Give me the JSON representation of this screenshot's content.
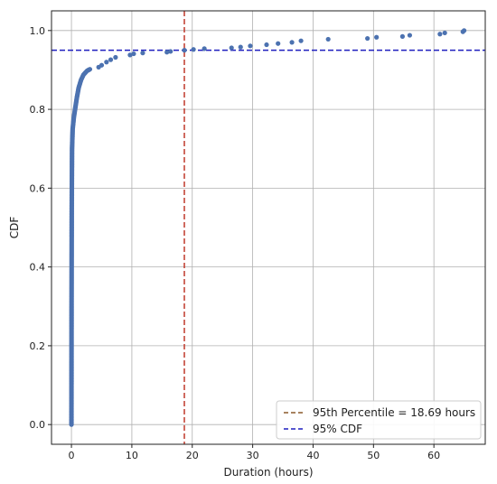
{
  "chart_data": {
    "type": "scatter",
    "xlabel": "Duration (hours)",
    "ylabel": "CDF",
    "xlim": [
      -3.3,
      68.5
    ],
    "ylim": [
      -0.05,
      1.05
    ],
    "xticks": [
      0,
      10,
      20,
      30,
      40,
      50,
      60
    ],
    "yticks": [
      0.0,
      0.2,
      0.4,
      0.6,
      0.8,
      1.0
    ],
    "grid": true,
    "legend_position": "lower-right",
    "colors": {
      "points": "#4c72b0",
      "percentile_line": "#c0392b",
      "cdf_line": "#1f1fbf",
      "legend_percentile_swatch": "#8b5a2b",
      "grid": "#b0b0b0"
    },
    "percentile_95_x": 18.69,
    "cdf_95_y": 0.95,
    "legend": [
      {
        "label": "95th Percentile = 18.69 hours",
        "style": "dashed",
        "color": "#8b5a2b"
      },
      {
        "label": "95% CDF",
        "style": "dashed",
        "color": "#1f1fbf"
      }
    ],
    "curve_knots": [
      [
        0.0,
        0.0
      ],
      [
        0.02,
        0.3
      ],
      [
        0.05,
        0.55
      ],
      [
        0.1,
        0.7
      ],
      [
        0.2,
        0.75
      ],
      [
        0.4,
        0.78
      ],
      [
        0.6,
        0.8
      ],
      [
        0.9,
        0.83
      ],
      [
        1.2,
        0.855
      ],
      [
        1.6,
        0.875
      ],
      [
        2.0,
        0.888
      ],
      [
        2.6,
        0.898
      ],
      [
        3.2,
        0.903
      ]
    ],
    "tail_points": [
      [
        4.5,
        0.907
      ],
      [
        5.0,
        0.912
      ],
      [
        5.8,
        0.92
      ],
      [
        6.5,
        0.926
      ],
      [
        7.3,
        0.932
      ],
      [
        9.7,
        0.938
      ],
      [
        10.3,
        0.941
      ],
      [
        11.8,
        0.943
      ],
      [
        15.8,
        0.945
      ],
      [
        16.4,
        0.947
      ],
      [
        18.7,
        0.95
      ],
      [
        20.2,
        0.952
      ],
      [
        22.0,
        0.954
      ],
      [
        26.5,
        0.956
      ],
      [
        28.0,
        0.958
      ],
      [
        29.6,
        0.961
      ],
      [
        32.3,
        0.964
      ],
      [
        34.2,
        0.967
      ],
      [
        36.5,
        0.97
      ],
      [
        38.0,
        0.974
      ],
      [
        42.5,
        0.978
      ],
      [
        49.0,
        0.98
      ],
      [
        50.5,
        0.983
      ],
      [
        54.8,
        0.985
      ],
      [
        56.0,
        0.988
      ],
      [
        61.0,
        0.991
      ],
      [
        61.8,
        0.994
      ],
      [
        64.8,
        0.997
      ],
      [
        65.0,
        1.0
      ]
    ]
  }
}
